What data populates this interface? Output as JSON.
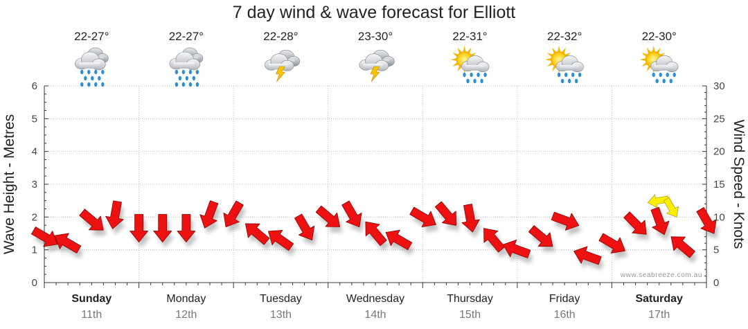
{
  "chart_data": {
    "type": "line",
    "title": "7 day wind & wave forecast for Elliott",
    "ylabel_left": "Wave Height - Metres",
    "ylabel_right": "Wind Speed - Knots",
    "ylim_left": [
      0,
      6
    ],
    "ylim_right": [
      0,
      30
    ],
    "yticks_left": [
      "0",
      "1",
      "2",
      "3",
      "4",
      "5",
      "6"
    ],
    "yticks_right": [
      "0",
      "5",
      "10",
      "15",
      "20",
      "25",
      "30"
    ],
    "watermark": "www.seabreeze.com.au",
    "days": [
      {
        "day": "Sunday",
        "date": "11th",
        "temp": "22-27°",
        "icon": "rain-cloud-icon",
        "bold": true
      },
      {
        "day": "Monday",
        "date": "12th",
        "temp": "22-27°",
        "icon": "rain-cloud-icon",
        "bold": false
      },
      {
        "day": "Tuesday",
        "date": "13th",
        "temp": "22-28°",
        "icon": "storm-cloud-icon",
        "bold": false
      },
      {
        "day": "Wednesday",
        "date": "14th",
        "temp": "23-30°",
        "icon": "storm-cloud-icon",
        "bold": false
      },
      {
        "day": "Thursday",
        "date": "15th",
        "temp": "22-31°",
        "icon": "sun-rain-icon",
        "bold": false
      },
      {
        "day": "Friday",
        "date": "16th",
        "temp": "22-32°",
        "icon": "sun-rain-icon",
        "bold": false
      },
      {
        "day": "Saturday",
        "date": "17th",
        "temp": "22-30°",
        "icon": "sun-rain-icon",
        "bold": true
      }
    ],
    "series": [
      {
        "name": "Wind Speed - Knots",
        "color": "#ee1111",
        "x_hours": [
          0,
          6,
          12,
          18,
          24,
          30,
          36,
          42,
          48,
          54,
          60,
          66,
          72,
          78,
          84,
          90,
          96,
          102,
          108,
          114,
          120,
          126,
          132,
          138,
          144,
          150,
          156,
          162,
          168
        ],
        "values": [
          7,
          6,
          9.5,
          10.5,
          8.5,
          8.5,
          8.5,
          10.5,
          10.5,
          7.5,
          6.5,
          8.5,
          10,
          10.5,
          7.5,
          6.5,
          10,
          10.5,
          10,
          6.5,
          5,
          7,
          9.5,
          4,
          6,
          9,
          9.5,
          5.5,
          9.5
        ],
        "directions_deg": [
          30,
          210,
          40,
          100,
          90,
          90,
          90,
          110,
          120,
          220,
          215,
          60,
          40,
          60,
          230,
          210,
          30,
          50,
          80,
          230,
          200,
          40,
          20,
          200,
          30,
          45,
          70,
          220,
          60
        ]
      },
      {
        "name": "Wind Gust",
        "color": "#ffee00",
        "values_partial": [
          {
            "x_hours": 156,
            "value": 12.5
          },
          {
            "x_hours": 159,
            "value": 11.5
          }
        ]
      }
    ]
  }
}
